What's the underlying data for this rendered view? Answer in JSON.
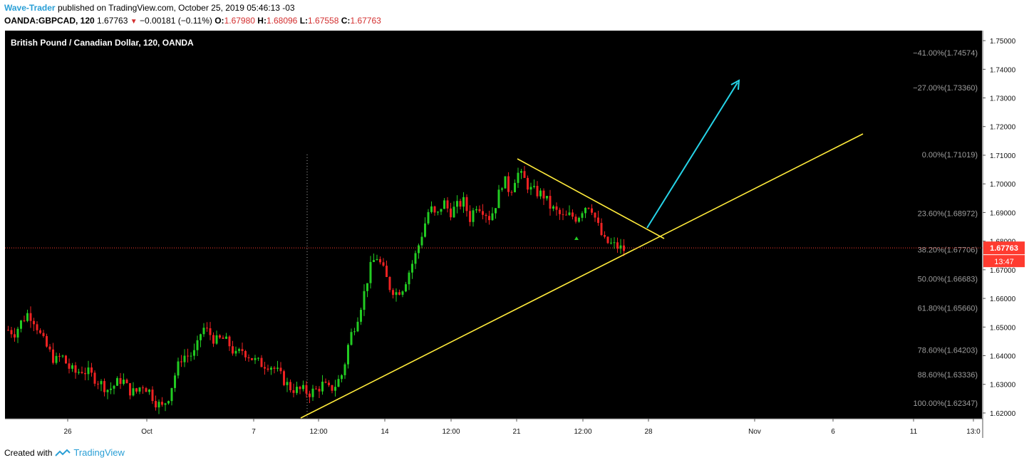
{
  "header": {
    "author": "Wave-Trader",
    "published_text": "published on TradingView.com, October 25, 2019 05:46:13 -03",
    "symbol": "OANDA:GBPCAD, 120",
    "last": "1.67763",
    "change": "−0.00181 (−0.11%)",
    "o_label": "O:",
    "o_value": "1.67980",
    "h_label": "H:",
    "h_value": "1.68096",
    "l_label": "L:",
    "l_value": "1.67558",
    "c_label": "C:",
    "c_value": "1.67763"
  },
  "footer": {
    "created_with": "Created with",
    "brand": "TradingView"
  },
  "colors": {
    "background": "#000000",
    "bull": "#22cc22",
    "bear": "#ee2222",
    "trendline": "#ffeb3b",
    "arrow": "#26d4e8",
    "fib_text": "#9e9e9e",
    "price_line": "#ff3b30",
    "axis_text": "#111111"
  },
  "chart_data": {
    "type": "candlestick",
    "title": "British Pound / Canadian Dollar, 120, OANDA",
    "ylim": [
      1.618,
      1.7535
    ],
    "y_ticks": [
      "1.75000",
      "1.74000",
      "1.73000",
      "1.72000",
      "1.71000",
      "1.70000",
      "1.69000",
      "1.68000",
      "1.67000",
      "1.66000",
      "1.65000",
      "1.64000",
      "1.63000",
      "1.62000"
    ],
    "x_ticks": [
      "26",
      "Oct",
      "7",
      "12:00",
      "14",
      "12:00",
      "21",
      "12:00",
      "28",
      "Nov",
      "6",
      "11",
      "13:0"
    ],
    "last_price": {
      "value": 1.67763,
      "label": "1.67763",
      "countdown": "13:47"
    },
    "fib_levels": [
      {
        "label": "−41.00%(1.74574)",
        "price": 1.74574
      },
      {
        "label": "−27.00%(1.73360)",
        "price": 1.7336
      },
      {
        "label": "0.00%(1.71019)",
        "price": 1.71019
      },
      {
        "label": "23.60%(1.68972)",
        "price": 1.68972
      },
      {
        "label": "38.20%(1.67706)",
        "price": 1.67706
      },
      {
        "label": "50.00%(1.66683)",
        "price": 1.66683
      },
      {
        "label": "61.80%(1.65660)",
        "price": 1.6566
      },
      {
        "label": "78.60%(1.64203)",
        "price": 1.64203
      },
      {
        "label": "88.60%(1.63336)",
        "price": 1.63336
      },
      {
        "label": "100.00%(1.62347)",
        "price": 1.62347
      }
    ],
    "price_path": [
      1.649,
      1.648,
      1.652,
      1.655,
      1.652,
      1.646,
      1.642,
      1.638,
      1.64,
      1.636,
      1.634,
      1.635,
      1.634,
      1.632,
      1.63,
      1.628,
      1.63,
      1.632,
      1.628,
      1.627,
      1.63,
      1.628,
      1.624,
      1.622,
      1.626,
      1.634,
      1.64,
      1.64,
      1.641,
      1.65,
      1.648,
      1.645,
      1.646,
      1.644,
      1.64,
      1.642,
      1.64,
      1.638,
      1.637,
      1.637,
      1.635,
      1.632,
      1.629,
      1.628,
      1.628,
      1.627,
      1.628,
      1.63,
      1.628,
      1.63,
      1.634,
      1.646,
      1.652,
      1.66,
      1.67,
      1.675,
      1.67,
      1.664,
      1.662,
      1.664,
      1.67,
      1.676,
      1.684,
      1.692,
      1.688,
      1.694,
      1.69,
      1.692,
      1.694,
      1.688,
      1.693,
      1.691,
      1.688,
      1.694,
      1.702,
      1.697,
      1.704,
      1.702,
      1.698,
      1.697,
      1.696,
      1.692,
      1.69,
      1.688,
      1.689,
      1.688,
      1.692,
      1.693,
      1.686,
      1.68,
      1.679,
      1.678,
      1.677
    ]
  }
}
